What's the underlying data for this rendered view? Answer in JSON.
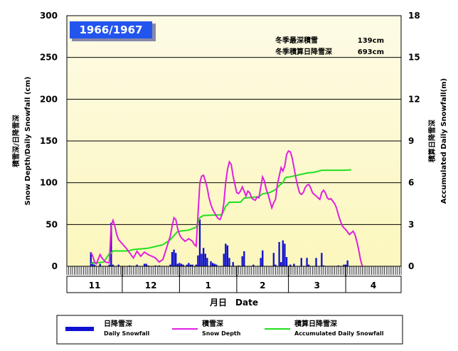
{
  "chart_data": {
    "type": "bar+line",
    "season_label": "1966/1967",
    "stats": [
      {
        "label": "冬季最深積雪",
        "value": "139cm"
      },
      {
        "label": "冬季積算日降雪深",
        "value": "693cm"
      }
    ],
    "left_axis": {
      "label_ja": "積雪深/日降雪深",
      "label_en": "Snow Depth/Daily Snowfall (cm)",
      "ylim": [
        0,
        300
      ],
      "ticks": [
        "0",
        "50",
        "100",
        "150",
        "200",
        "250",
        "300"
      ]
    },
    "right_axis": {
      "label_ja": "積算日降雪深",
      "label_en": "Accumulated Daily Snowfall(m)",
      "ylim": [
        0,
        18
      ],
      "ticks": [
        "0",
        "3",
        "6",
        "9",
        "12",
        "15",
        "18"
      ]
    },
    "x_axis": {
      "label": "月日　Date",
      "months": [
        "11",
        "12",
        "1",
        "2",
        "3",
        "4"
      ],
      "month_days": [
        30,
        31,
        31,
        28,
        31,
        30
      ]
    },
    "legend": [
      {
        "ja": "日降雪深",
        "en": "Daily Snowfall",
        "color": "#1010d0"
      },
      {
        "ja": "積雪深",
        "en": "Snow Depth",
        "color": "#e020e0"
      },
      {
        "ja": "積算日降雪深",
        "en": "Accumulated Daily Snowfall",
        "color": "#20e020"
      }
    ],
    "colors": {
      "plot_top": "#fdfbe6",
      "plot_bottom": "#fcf7bd",
      "season_box": "#2255ee"
    },
    "daily_snowfall": [
      {
        "day": 13,
        "v": 17
      },
      {
        "day": 14,
        "v": 5
      },
      {
        "day": 15,
        "v": 2
      },
      {
        "day": 18,
        "v": 3
      },
      {
        "day": 23,
        "v": 2
      },
      {
        "day": 24,
        "v": 52
      },
      {
        "day": 25,
        "v": 2
      },
      {
        "day": 28,
        "v": 2
      },
      {
        "day": 34,
        "v": 1
      },
      {
        "day": 38,
        "v": 2
      },
      {
        "day": 42,
        "v": 3
      },
      {
        "day": 43,
        "v": 3
      },
      {
        "day": 44,
        "v": 1
      },
      {
        "day": 48,
        "v": 1
      },
      {
        "day": 50,
        "v": 1
      },
      {
        "day": 56,
        "v": 2
      },
      {
        "day": 57,
        "v": 17
      },
      {
        "day": 58,
        "v": 20
      },
      {
        "day": 59,
        "v": 16
      },
      {
        "day": 60,
        "v": 3
      },
      {
        "day": 61,
        "v": 4
      },
      {
        "day": 62,
        "v": 3
      },
      {
        "day": 63,
        "v": 2
      },
      {
        "day": 65,
        "v": 2
      },
      {
        "day": 66,
        "v": 4
      },
      {
        "day": 67,
        "v": 2
      },
      {
        "day": 68,
        "v": 2
      },
      {
        "day": 70,
        "v": 2
      },
      {
        "day": 71,
        "v": 13
      },
      {
        "day": 72,
        "v": 56
      },
      {
        "day": 73,
        "v": 15
      },
      {
        "day": 74,
        "v": 22
      },
      {
        "day": 75,
        "v": 15
      },
      {
        "day": 76,
        "v": 10
      },
      {
        "day": 78,
        "v": 6
      },
      {
        "day": 79,
        "v": 4
      },
      {
        "day": 80,
        "v": 3
      },
      {
        "day": 81,
        "v": 2
      },
      {
        "day": 85,
        "v": 15
      },
      {
        "day": 86,
        "v": 27
      },
      {
        "day": 87,
        "v": 25
      },
      {
        "day": 88,
        "v": 10
      },
      {
        "day": 90,
        "v": 5
      },
      {
        "day": 93,
        "v": 1
      },
      {
        "day": 95,
        "v": 12
      },
      {
        "day": 96,
        "v": 18
      },
      {
        "day": 101,
        "v": 2
      },
      {
        "day": 105,
        "v": 10
      },
      {
        "day": 106,
        "v": 19
      },
      {
        "day": 112,
        "v": 16
      },
      {
        "day": 113,
        "v": 2
      },
      {
        "day": 115,
        "v": 29
      },
      {
        "day": 116,
        "v": 5
      },
      {
        "day": 117,
        "v": 31
      },
      {
        "day": 118,
        "v": 27
      },
      {
        "day": 119,
        "v": 11
      },
      {
        "day": 121,
        "v": 2
      },
      {
        "day": 123,
        "v": 3
      },
      {
        "day": 127,
        "v": 10
      },
      {
        "day": 130,
        "v": 10
      },
      {
        "day": 131,
        "v": 2
      },
      {
        "day": 135,
        "v": 10
      },
      {
        "day": 138,
        "v": 16
      },
      {
        "day": 139,
        "v": 1
      },
      {
        "day": 147,
        "v": 1
      },
      {
        "day": 150,
        "v": 2
      },
      {
        "day": 151,
        "v": 2
      },
      {
        "day": 152,
        "v": 7
      }
    ],
    "snow_depth": [
      {
        "x": 13,
        "y": 17
      },
      {
        "x": 14,
        "y": 12
      },
      {
        "x": 15,
        "y": 5
      },
      {
        "x": 16,
        "y": 3
      },
      {
        "x": 18,
        "y": 14
      },
      {
        "x": 19,
        "y": 10
      },
      {
        "x": 21,
        "y": 5
      },
      {
        "x": 23,
        "y": 4
      },
      {
        "x": 24,
        "y": 49
      },
      {
        "x": 25,
        "y": 55
      },
      {
        "x": 26,
        "y": 48
      },
      {
        "x": 27,
        "y": 38
      },
      {
        "x": 28,
        "y": 32
      },
      {
        "x": 30,
        "y": 27
      },
      {
        "x": 32,
        "y": 22
      },
      {
        "x": 34,
        "y": 16
      },
      {
        "x": 36,
        "y": 10
      },
      {
        "x": 38,
        "y": 18
      },
      {
        "x": 40,
        "y": 12
      },
      {
        "x": 42,
        "y": 17
      },
      {
        "x": 44,
        "y": 14
      },
      {
        "x": 46,
        "y": 12
      },
      {
        "x": 48,
        "y": 10
      },
      {
        "x": 50,
        "y": 5
      },
      {
        "x": 52,
        "y": 8
      },
      {
        "x": 54,
        "y": 22
      },
      {
        "x": 56,
        "y": 36
      },
      {
        "x": 57,
        "y": 48
      },
      {
        "x": 58,
        "y": 58
      },
      {
        "x": 59,
        "y": 56
      },
      {
        "x": 60,
        "y": 45
      },
      {
        "x": 61,
        "y": 38
      },
      {
        "x": 62,
        "y": 34
      },
      {
        "x": 64,
        "y": 30
      },
      {
        "x": 66,
        "y": 33
      },
      {
        "x": 68,
        "y": 30
      },
      {
        "x": 69,
        "y": 26
      },
      {
        "x": 70,
        "y": 24
      },
      {
        "x": 71,
        "y": 62
      },
      {
        "x": 72,
        "y": 100
      },
      {
        "x": 73,
        "y": 108
      },
      {
        "x": 74,
        "y": 109
      },
      {
        "x": 75,
        "y": 102
      },
      {
        "x": 76,
        "y": 94
      },
      {
        "x": 77,
        "y": 82
      },
      {
        "x": 78,
        "y": 74
      },
      {
        "x": 79,
        "y": 68
      },
      {
        "x": 80,
        "y": 64
      },
      {
        "x": 81,
        "y": 60
      },
      {
        "x": 82,
        "y": 57
      },
      {
        "x": 83,
        "y": 56
      },
      {
        "x": 84,
        "y": 62
      },
      {
        "x": 85,
        "y": 75
      },
      {
        "x": 86,
        "y": 100
      },
      {
        "x": 87,
        "y": 116
      },
      {
        "x": 88,
        "y": 125
      },
      {
        "x": 89,
        "y": 122
      },
      {
        "x": 90,
        "y": 108
      },
      {
        "x": 91,
        "y": 98
      },
      {
        "x": 92,
        "y": 88
      },
      {
        "x": 93,
        "y": 87
      },
      {
        "x": 94,
        "y": 90
      },
      {
        "x": 95,
        "y": 95
      },
      {
        "x": 96,
        "y": 90
      },
      {
        "x": 97,
        "y": 84
      },
      {
        "x": 98,
        "y": 90
      },
      {
        "x": 99,
        "y": 88
      },
      {
        "x": 100,
        "y": 82
      },
      {
        "x": 101,
        "y": 80
      },
      {
        "x": 102,
        "y": 79
      },
      {
        "x": 103,
        "y": 83
      },
      {
        "x": 104,
        "y": 82
      },
      {
        "x": 105,
        "y": 95
      },
      {
        "x": 106,
        "y": 107
      },
      {
        "x": 107,
        "y": 102
      },
      {
        "x": 108,
        "y": 92
      },
      {
        "x": 109,
        "y": 86
      },
      {
        "x": 110,
        "y": 78
      },
      {
        "x": 111,
        "y": 70
      },
      {
        "x": 112,
        "y": 76
      },
      {
        "x": 113,
        "y": 80
      },
      {
        "x": 114,
        "y": 98
      },
      {
        "x": 115,
        "y": 108
      },
      {
        "x": 116,
        "y": 118
      },
      {
        "x": 117,
        "y": 114
      },
      {
        "x": 118,
        "y": 120
      },
      {
        "x": 119,
        "y": 134
      },
      {
        "x": 120,
        "y": 138
      },
      {
        "x": 121,
        "y": 137
      },
      {
        "x": 122,
        "y": 130
      },
      {
        "x": 123,
        "y": 118
      },
      {
        "x": 124,
        "y": 106
      },
      {
        "x": 125,
        "y": 96
      },
      {
        "x": 126,
        "y": 88
      },
      {
        "x": 127,
        "y": 86
      },
      {
        "x": 128,
        "y": 88
      },
      {
        "x": 129,
        "y": 94
      },
      {
        "x": 130,
        "y": 97
      },
      {
        "x": 131,
        "y": 98
      },
      {
        "x": 132,
        "y": 94
      },
      {
        "x": 133,
        "y": 88
      },
      {
        "x": 134,
        "y": 86
      },
      {
        "x": 135,
        "y": 84
      },
      {
        "x": 136,
        "y": 82
      },
      {
        "x": 137,
        "y": 80
      },
      {
        "x": 138,
        "y": 88
      },
      {
        "x": 139,
        "y": 91
      },
      {
        "x": 140,
        "y": 88
      },
      {
        "x": 141,
        "y": 82
      },
      {
        "x": 142,
        "y": 80
      },
      {
        "x": 143,
        "y": 81
      },
      {
        "x": 144,
        "y": 78
      },
      {
        "x": 145,
        "y": 75
      },
      {
        "x": 146,
        "y": 70
      },
      {
        "x": 147,
        "y": 62
      },
      {
        "x": 148,
        "y": 55
      },
      {
        "x": 149,
        "y": 49
      },
      {
        "x": 150,
        "y": 46
      },
      {
        "x": 151,
        "y": 44
      },
      {
        "x": 152,
        "y": 41
      },
      {
        "x": 153,
        "y": 38
      },
      {
        "x": 154,
        "y": 40
      },
      {
        "x": 155,
        "y": 42
      },
      {
        "x": 156,
        "y": 38
      },
      {
        "x": 157,
        "y": 30
      },
      {
        "x": 158,
        "y": 20
      },
      {
        "x": 159,
        "y": 8
      },
      {
        "x": 160,
        "y": 0
      }
    ],
    "accumulated_snowfall": [
      {
        "x": 13,
        "y": 0.2
      },
      {
        "x": 20,
        "y": 0.3
      },
      {
        "x": 23,
        "y": 0.9
      },
      {
        "x": 24,
        "y": 0.95
      },
      {
        "x": 25,
        "y": 1.1
      },
      {
        "x": 33,
        "y": 1.1
      },
      {
        "x": 36,
        "y": 1.2
      },
      {
        "x": 44,
        "y": 1.3
      },
      {
        "x": 52,
        "y": 1.55
      },
      {
        "x": 56,
        "y": 1.9
      },
      {
        "x": 60,
        "y": 2.5
      },
      {
        "x": 63,
        "y": 2.55
      },
      {
        "x": 66,
        "y": 2.6
      },
      {
        "x": 70,
        "y": 2.8
      },
      {
        "x": 72,
        "y": 3.5
      },
      {
        "x": 74,
        "y": 3.65
      },
      {
        "x": 84,
        "y": 3.7
      },
      {
        "x": 86,
        "y": 4.3
      },
      {
        "x": 88,
        "y": 4.6
      },
      {
        "x": 94,
        "y": 4.6
      },
      {
        "x": 96,
        "y": 4.9
      },
      {
        "x": 100,
        "y": 4.95
      },
      {
        "x": 104,
        "y": 5.0
      },
      {
        "x": 106,
        "y": 5.2
      },
      {
        "x": 110,
        "y": 5.3
      },
      {
        "x": 113,
        "y": 5.5
      },
      {
        "x": 115,
        "y": 5.8
      },
      {
        "x": 117,
        "y": 6.0
      },
      {
        "x": 118,
        "y": 6.3
      },
      {
        "x": 119,
        "y": 6.4
      },
      {
        "x": 120,
        "y": 6.4
      },
      {
        "x": 127,
        "y": 6.6
      },
      {
        "x": 130,
        "y": 6.7
      },
      {
        "x": 134,
        "y": 6.75
      },
      {
        "x": 138,
        "y": 6.9
      },
      {
        "x": 150,
        "y": 6.9
      },
      {
        "x": 154,
        "y": 6.93
      }
    ]
  }
}
